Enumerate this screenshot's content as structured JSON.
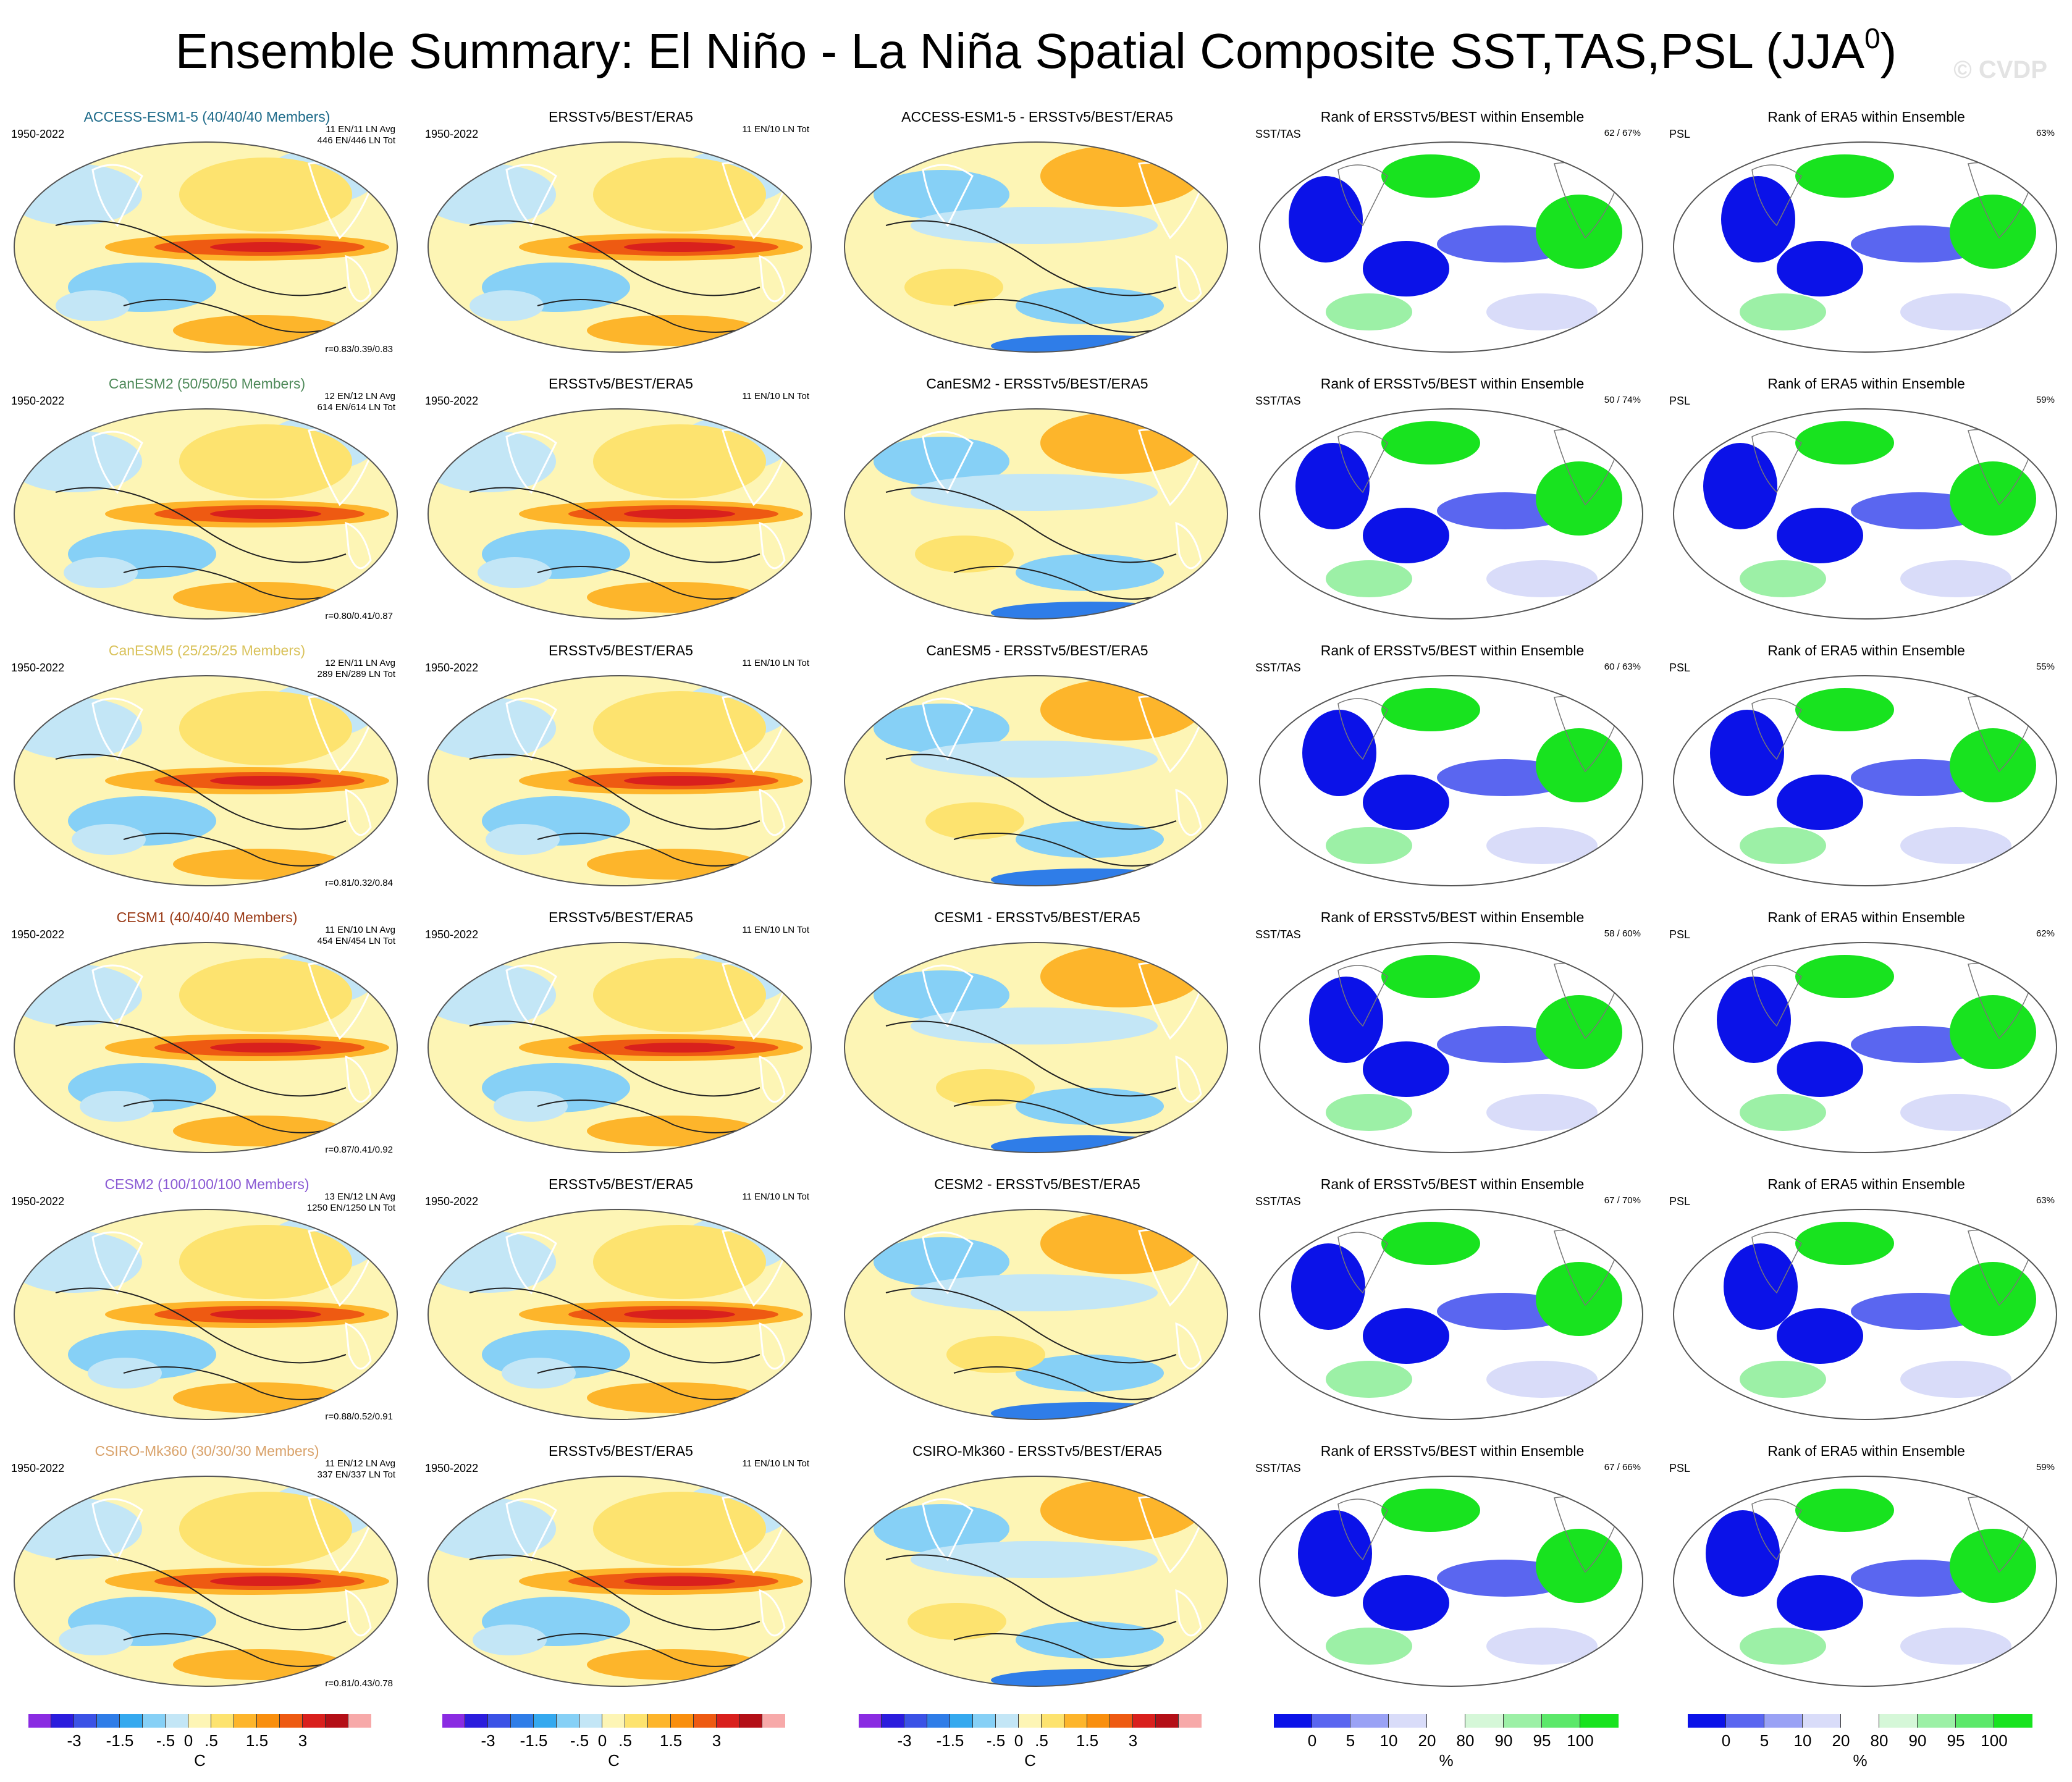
{
  "title_main": "Ensemble Summary: El Niño - La Niña Spatial Composite SST,TAS,PSL (JJA",
  "title_sup": "0",
  "title_close": ")",
  "watermark": "© CVDP",
  "colors": {
    "sst_levels": [
      "#8a2be2",
      "#2b1cdd",
      "#3b52e6",
      "#2f7de8",
      "#35a9ef",
      "#86d0f6",
      "#c3e6f6",
      "#fdf5b5",
      "#fde36f",
      "#fdb52b",
      "#f98f0e",
      "#ee5a12",
      "#d9201d",
      "#b40f17",
      "#f7a9a9"
    ],
    "rank_levels": [
      "#0b12e8",
      "#5a66f0",
      "#9aa2f5",
      "#d9dcf9",
      "#ffffff",
      "#d5f7d8",
      "#9cf0a6",
      "#5ce86a",
      "#18e31f"
    ]
  },
  "legends": [
    {
      "type": "sst",
      "ticks": [
        "-3",
        "-1.5",
        "-.5",
        "0",
        ".5",
        "1.5",
        "3"
      ],
      "unit": "C"
    },
    {
      "type": "sst",
      "ticks": [
        "-3",
        "-1.5",
        "-.5",
        "0",
        ".5",
        "1.5",
        "3"
      ],
      "unit": "C"
    },
    {
      "type": "sst",
      "ticks": [
        "-3",
        "-1.5",
        "-.5",
        "0",
        ".5",
        "1.5",
        "3"
      ],
      "unit": "C"
    },
    {
      "type": "rank",
      "ticks": [
        "0",
        "5",
        "10",
        "20",
        "80",
        "90",
        "95",
        "100"
      ],
      "unit": "%"
    },
    {
      "type": "rank",
      "ticks": [
        "0",
        "5",
        "10",
        "20",
        "80",
        "90",
        "95",
        "100"
      ],
      "unit": "%"
    }
  ],
  "rows": [
    {
      "model": "ACCESS-ESM1-5",
      "model_label": "ACCESS-ESM1-5 (40/40/40 Members)",
      "model_color": "#1e6b8a",
      "years": "1950-2022",
      "avg": "11 EN/11 LN Avg",
      "tot": "446 EN/446 LN Tot",
      "corr": "r=0.83/0.39/0.83",
      "obs_title": "ERSSTv5/BEST/ERA5",
      "obs_years": "1950-2022",
      "obs_tot": "11 EN/10 LN Tot",
      "diff_title": "ACCESS-ESM1-5 - ERSSTv5/BEST/ERA5",
      "rank1_title": "Rank of ERSSTv5/BEST within Ensemble",
      "rank1_tag": "SST/TAS",
      "rank1_pct": "62 /  67%",
      "rank2_title": "Rank of ERA5 within Ensemble",
      "rank2_tag": "PSL",
      "rank2_pct": "63%"
    },
    {
      "model": "CanESM2",
      "model_label": "CanESM2 (50/50/50 Members)",
      "model_color": "#4f8a5a",
      "years": "1950-2022",
      "avg": "12 EN/12 LN Avg",
      "tot": "614 EN/614 LN Tot",
      "corr": "r=0.80/0.41/0.87",
      "obs_title": "ERSSTv5/BEST/ERA5",
      "obs_years": "1950-2022",
      "obs_tot": "11 EN/10 LN Tot",
      "diff_title": "CanESM2 - ERSSTv5/BEST/ERA5",
      "rank1_title": "Rank of ERSSTv5/BEST within Ensemble",
      "rank1_tag": "SST/TAS",
      "rank1_pct": "50 /  74%",
      "rank2_title": "Rank of ERA5 within Ensemble",
      "rank2_tag": "PSL",
      "rank2_pct": "59%"
    },
    {
      "model": "CanESM5",
      "model_label": "CanESM5 (25/25/25 Members)",
      "model_color": "#d9c25a",
      "years": "1950-2022",
      "avg": "12 EN/11 LN Avg",
      "tot": "289 EN/289 LN Tot",
      "corr": "r=0.81/0.32/0.84",
      "obs_title": "ERSSTv5/BEST/ERA5",
      "obs_years": "1950-2022",
      "obs_tot": "11 EN/10 LN Tot",
      "diff_title": "CanESM5 - ERSSTv5/BEST/ERA5",
      "rank1_title": "Rank of ERSSTv5/BEST within Ensemble",
      "rank1_tag": "SST/TAS",
      "rank1_pct": "60 /  63%",
      "rank2_title": "Rank of ERA5 within Ensemble",
      "rank2_tag": "PSL",
      "rank2_pct": "55%"
    },
    {
      "model": "CESM1",
      "model_label": "CESM1 (40/40/40 Members)",
      "model_color": "#9a3a16",
      "years": "1950-2022",
      "avg": "11 EN/10 LN Avg",
      "tot": "454 EN/454 LN Tot",
      "corr": "r=0.87/0.41/0.92",
      "obs_title": "ERSSTv5/BEST/ERA5",
      "obs_years": "1950-2022",
      "obs_tot": "11 EN/10 LN Tot",
      "diff_title": "CESM1 - ERSSTv5/BEST/ERA5",
      "rank1_title": "Rank of ERSSTv5/BEST within Ensemble",
      "rank1_tag": "SST/TAS",
      "rank1_pct": "58 /  60%",
      "rank2_title": "Rank of ERA5 within Ensemble",
      "rank2_tag": "PSL",
      "rank2_pct": "62%"
    },
    {
      "model": "CESM2",
      "model_label": "CESM2 (100/100/100 Members)",
      "model_color": "#8a5ad4",
      "years": "1950-2022",
      "avg": "13 EN/12 LN Avg",
      "tot": "1250 EN/1250 LN Tot",
      "corr": "r=0.88/0.52/0.91",
      "obs_title": "ERSSTv5/BEST/ERA5",
      "obs_years": "1950-2022",
      "obs_tot": "11 EN/10 LN Tot",
      "diff_title": "CESM2 - ERSSTv5/BEST/ERA5",
      "rank1_title": "Rank of ERSSTv5/BEST within Ensemble",
      "rank1_tag": "SST/TAS",
      "rank1_pct": "67 /  70%",
      "rank2_title": "Rank of ERA5 within Ensemble",
      "rank2_tag": "PSL",
      "rank2_pct": "63%"
    },
    {
      "model": "CSIRO-Mk360",
      "model_label": "CSIRO-Mk360 (30/30/30 Members)",
      "model_color": "#d9a26a",
      "years": "1950-2022",
      "avg": "11 EN/12 LN Avg",
      "tot": "337 EN/337 LN Tot",
      "corr": "r=0.81/0.43/0.78",
      "obs_title": "ERSSTv5/BEST/ERA5",
      "obs_years": "1950-2022",
      "obs_tot": "11 EN/10 LN Tot",
      "diff_title": "CSIRO-Mk360 - ERSSTv5/BEST/ERA5",
      "rank1_title": "Rank of ERSSTv5/BEST within Ensemble",
      "rank1_tag": "SST/TAS",
      "rank1_pct": "67 /  66%",
      "rank2_title": "Rank of ERA5 within Ensemble",
      "rank2_tag": "PSL",
      "rank2_pct": "59%"
    }
  ]
}
